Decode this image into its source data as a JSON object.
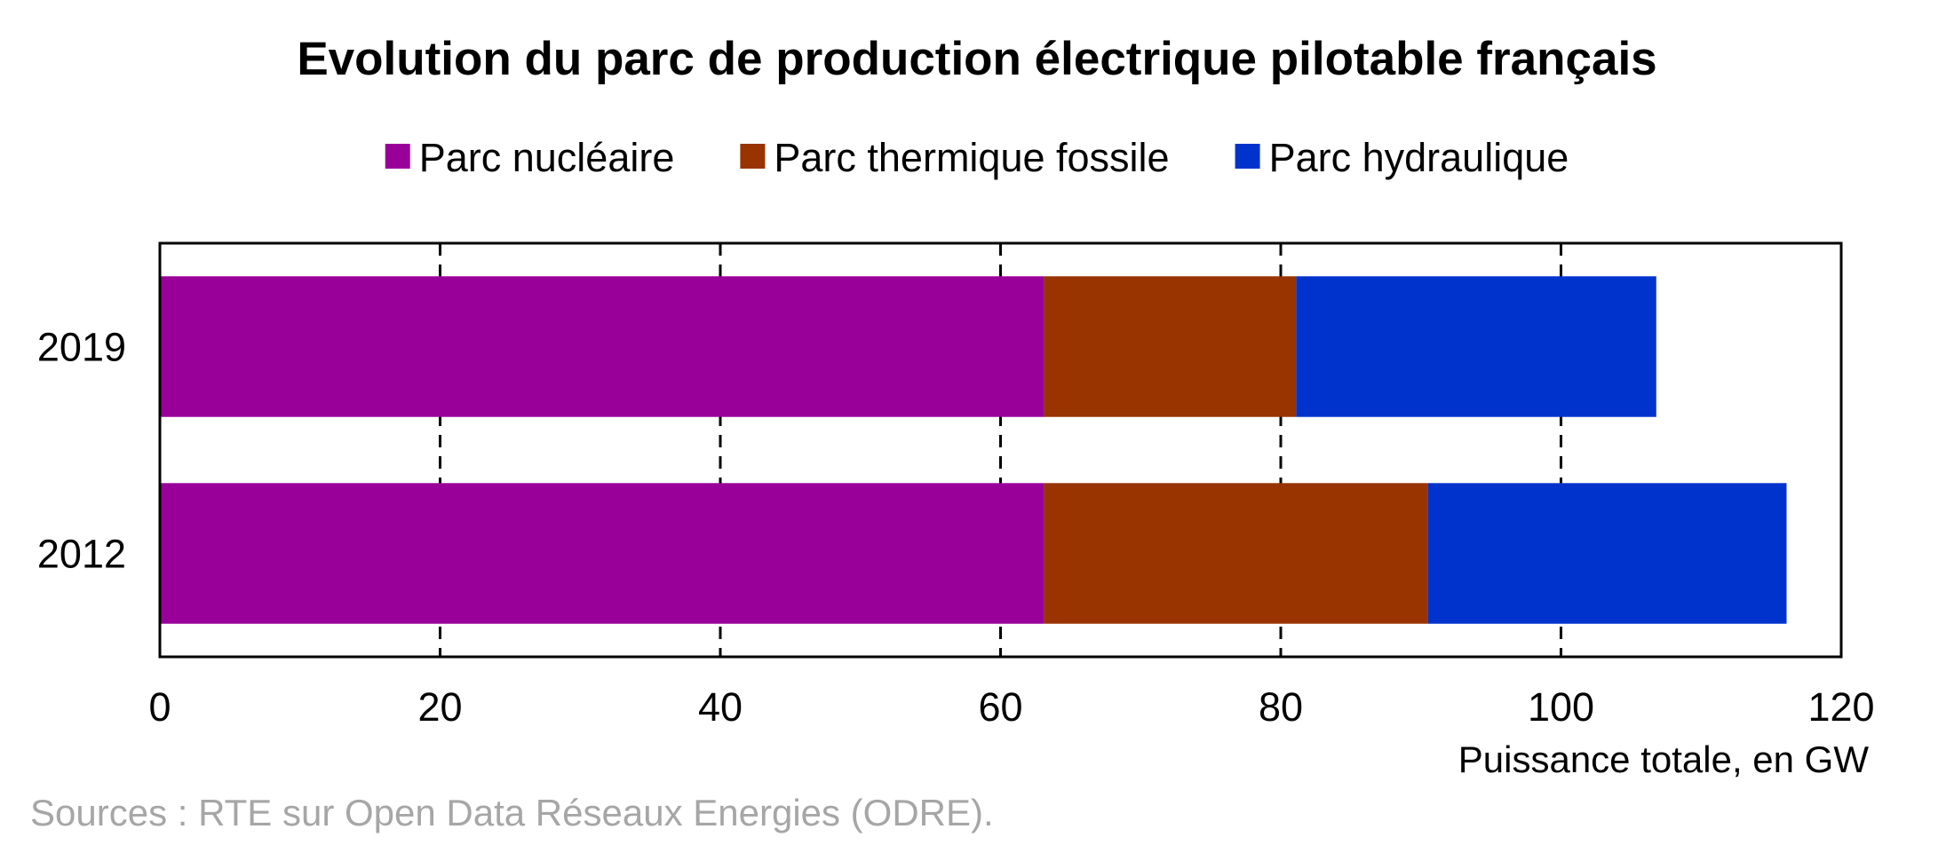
{
  "chart_data": {
    "type": "bar",
    "orientation": "horizontal",
    "stacked": true,
    "title": "Evolution du parc de production électrique pilotable français",
    "categories": [
      "2019",
      "2012"
    ],
    "series": [
      {
        "name": "Parc nucléaire",
        "color": "#990099",
        "values": [
          63.1,
          63.1
        ]
      },
      {
        "name": "Parc thermique fossile",
        "color": "#993300",
        "values": [
          18.0,
          27.4
        ]
      },
      {
        "name": "Parc hydraulique",
        "color": "#0033cc",
        "values": [
          25.7,
          25.6
        ]
      }
    ],
    "x_ticks": [
      "0",
      "20",
      "40",
      "60",
      "80",
      "100",
      "120"
    ],
    "xlim": [
      0,
      120
    ],
    "xlabel": "Puissance totale, en GW",
    "ylabel": "",
    "grid": "vertical dashed",
    "legend_position": "top",
    "source": "Sources : RTE sur Open Data Réseaux Energies (ODRE)."
  }
}
